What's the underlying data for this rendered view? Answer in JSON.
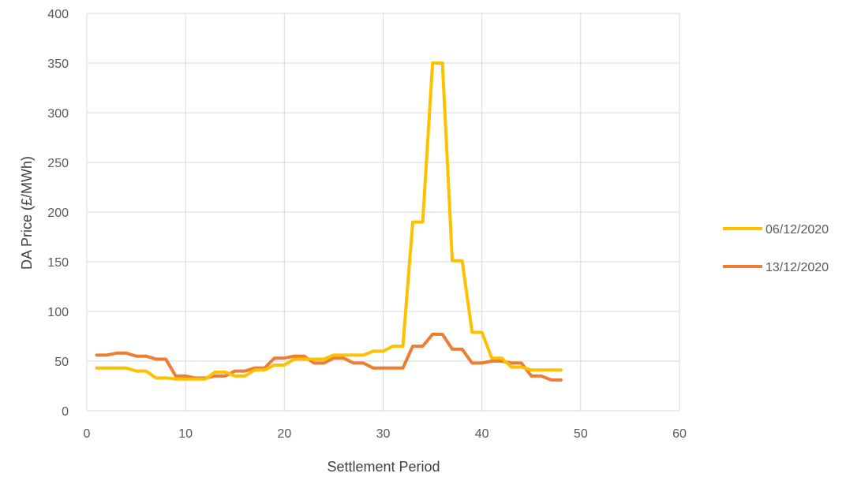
{
  "chart_data": {
    "type": "line",
    "title": "",
    "xlabel": "Settlement Period",
    "ylabel": "DA Price (£/MWh)",
    "xlim": [
      0,
      60
    ],
    "ylim": [
      0,
      400
    ],
    "xticks": [
      0,
      10,
      20,
      30,
      40,
      50,
      60
    ],
    "yticks": [
      0,
      50,
      100,
      150,
      200,
      250,
      300,
      350,
      400
    ],
    "grid": true,
    "legend_position": "right",
    "x": [
      1,
      2,
      3,
      4,
      5,
      6,
      7,
      8,
      9,
      10,
      11,
      12,
      13,
      14,
      15,
      16,
      17,
      18,
      19,
      20,
      21,
      22,
      23,
      24,
      25,
      26,
      27,
      28,
      29,
      30,
      31,
      32,
      33,
      34,
      35,
      36,
      37,
      38,
      39,
      40,
      41,
      42,
      43,
      44,
      45,
      46,
      47,
      48
    ],
    "series": [
      {
        "name": "06/12/2020",
        "color": "#FFC000",
        "values": [
          43,
          43,
          43,
          43,
          40,
          40,
          33,
          33,
          32,
          32,
          32,
          32,
          39,
          39,
          35,
          35,
          41,
          41,
          46,
          46,
          52,
          52,
          52,
          52,
          56,
          56,
          56,
          56,
          60,
          60,
          65,
          65,
          190,
          190,
          350,
          350,
          151,
          151,
          79,
          79,
          53,
          53,
          44,
          44,
          41,
          41,
          41,
          41
        ]
      },
      {
        "name": "13/12/2020",
        "color": "#ED7D31",
        "values": [
          56,
          56,
          58,
          58,
          55,
          55,
          52,
          52,
          35,
          35,
          33,
          33,
          35,
          35,
          40,
          40,
          43,
          43,
          53,
          53,
          55,
          55,
          48,
          48,
          53,
          53,
          48,
          48,
          43,
          43,
          43,
          43,
          65,
          65,
          77,
          77,
          62,
          62,
          48,
          48,
          50,
          50,
          48,
          48,
          35,
          35,
          31,
          31
        ]
      }
    ]
  }
}
